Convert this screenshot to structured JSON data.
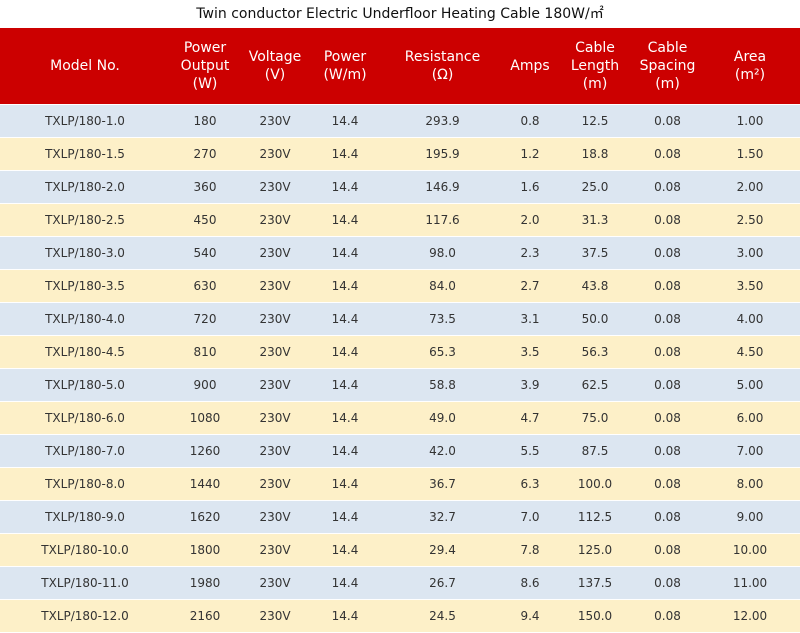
{
  "title": "Twin conductor Electric Underfloor Heating Cable 180W/㎡",
  "columns": [
    [
      "Model No."
    ],
    [
      "Power",
      "Output",
      "(W)"
    ],
    [
      "Voltage",
      "(V)"
    ],
    [
      "Power",
      "(W/m)"
    ],
    [
      "Resistance",
      "(Ω)"
    ],
    [
      "Amps"
    ],
    [
      "Cable",
      "Length",
      "(m)"
    ],
    [
      "Cable",
      "Spacing",
      "(m)"
    ],
    [
      "Area",
      "(m²)"
    ]
  ],
  "rows": [
    [
      "TXLP/180-1.0",
      "180",
      "230V",
      "14.4",
      "293.9",
      "0.8",
      "12.5",
      "0.08",
      "1.00"
    ],
    [
      "TXLP/180-1.5",
      "270",
      "230V",
      "14.4",
      "195.9",
      "1.2",
      "18.8",
      "0.08",
      "1.50"
    ],
    [
      "TXLP/180-2.0",
      "360",
      "230V",
      "14.4",
      "146.9",
      "1.6",
      "25.0",
      "0.08",
      "2.00"
    ],
    [
      "TXLP/180-2.5",
      "450",
      "230V",
      "14.4",
      "117.6",
      "2.0",
      "31.3",
      "0.08",
      "2.50"
    ],
    [
      "TXLP/180-3.0",
      "540",
      "230V",
      "14.4",
      "98.0",
      "2.3",
      "37.5",
      "0.08",
      "3.00"
    ],
    [
      "TXLP/180-3.5",
      "630",
      "230V",
      "14.4",
      "84.0",
      "2.7",
      "43.8",
      "0.08",
      "3.50"
    ],
    [
      "TXLP/180-4.0",
      "720",
      "230V",
      "14.4",
      "73.5",
      "3.1",
      "50.0",
      "0.08",
      "4.00"
    ],
    [
      "TXLP/180-4.5",
      "810",
      "230V",
      "14.4",
      "65.3",
      "3.5",
      "56.3",
      "0.08",
      "4.50"
    ],
    [
      "TXLP/180-5.0",
      "900",
      "230V",
      "14.4",
      "58.8",
      "3.9",
      "62.5",
      "0.08",
      "5.00"
    ],
    [
      "TXLP/180-6.0",
      "1080",
      "230V",
      "14.4",
      "49.0",
      "4.7",
      "75.0",
      "0.08",
      "6.00"
    ],
    [
      "TXLP/180-7.0",
      "1260",
      "230V",
      "14.4",
      "42.0",
      "5.5",
      "87.5",
      "0.08",
      "7.00"
    ],
    [
      "TXLP/180-8.0",
      "1440",
      "230V",
      "14.4",
      "36.7",
      "6.3",
      "100.0",
      "0.08",
      "8.00"
    ],
    [
      "TXLP/180-9.0",
      "1620",
      "230V",
      "14.4",
      "32.7",
      "7.0",
      "112.5",
      "0.08",
      "9.00"
    ],
    [
      "TXLP/180-10.0",
      "1800",
      "230V",
      "14.4",
      "29.4",
      "7.8",
      "125.0",
      "0.08",
      "10.00"
    ],
    [
      "TXLP/180-11.0",
      "1980",
      "230V",
      "14.4",
      "26.7",
      "8.6",
      "137.5",
      "0.08",
      "11.00"
    ],
    [
      "TXLP/180-12.0",
      "2160",
      "230V",
      "14.4",
      "24.5",
      "9.4",
      "150.0",
      "0.08",
      "12.00"
    ]
  ],
  "colors": {
    "header_bg": "#cc0000",
    "row_blue": "#dce6f1",
    "row_yellow": "#fdf0c8"
  }
}
